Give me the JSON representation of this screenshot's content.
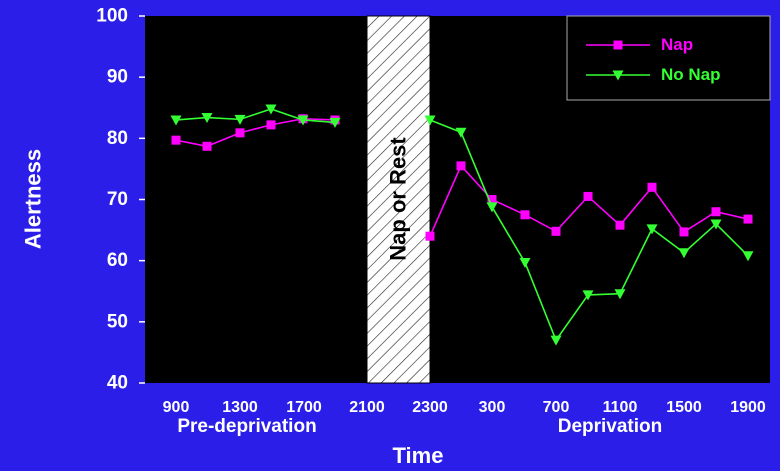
{
  "chart_data": {
    "type": "line",
    "ylabel": "Alertness",
    "xlabel": "Time",
    "ylim": [
      40,
      100
    ],
    "yticks": [
      40,
      50,
      60,
      70,
      80,
      90,
      100
    ],
    "x_tick_labels": [
      "900",
      "1300",
      "1700",
      "2100",
      "2300",
      "300",
      "700",
      "1100",
      "1500",
      "1900"
    ],
    "group_labels": [
      "Pre-deprivation",
      "Deprivation"
    ],
    "shaded_annotation": "Nap or Rest",
    "legend_position": "top-right",
    "series": [
      {
        "name": "Nap",
        "color": "#ff00ff",
        "marker": "square",
        "segments": [
          [
            [
              "900",
              79.7
            ],
            [
              "1100",
              78.7
            ],
            [
              "1300",
              80.9
            ],
            [
              "1500",
              82.2
            ],
            [
              "1700",
              83.2
            ],
            [
              "1900",
              83.0
            ]
          ],
          [
            [
              "2300",
              64.0
            ],
            [
              "100",
              75.5
            ],
            [
              "300",
              70.0
            ],
            [
              "500",
              67.5
            ],
            [
              "700",
              64.8
            ],
            [
              "900",
              70.5
            ],
            [
              "1100",
              65.8
            ],
            [
              "1300",
              72.0
            ],
            [
              "1500",
              64.7
            ],
            [
              "1700",
              68.0
            ],
            [
              "1900",
              66.8
            ]
          ]
        ]
      },
      {
        "name": "No Nap",
        "color": "#33ff33",
        "marker": "triangle-down",
        "segments": [
          [
            [
              "900",
              83.0
            ],
            [
              "1100",
              83.4
            ],
            [
              "1300",
              83.1
            ],
            [
              "1500",
              84.8
            ],
            [
              "1700",
              83.0
            ],
            [
              "1900",
              82.6
            ]
          ],
          [
            [
              "2300",
              83.0
            ],
            [
              "100",
              81.0
            ],
            [
              "300",
              68.8
            ],
            [
              "500",
              59.7
            ],
            [
              "700",
              47.0
            ],
            [
              "900",
              54.4
            ],
            [
              "1100",
              54.6
            ],
            [
              "1300",
              65.2
            ],
            [
              "1500",
              61.3
            ],
            [
              "1700",
              66.0
            ],
            [
              "1900",
              60.8
            ]
          ]
        ]
      }
    ]
  }
}
